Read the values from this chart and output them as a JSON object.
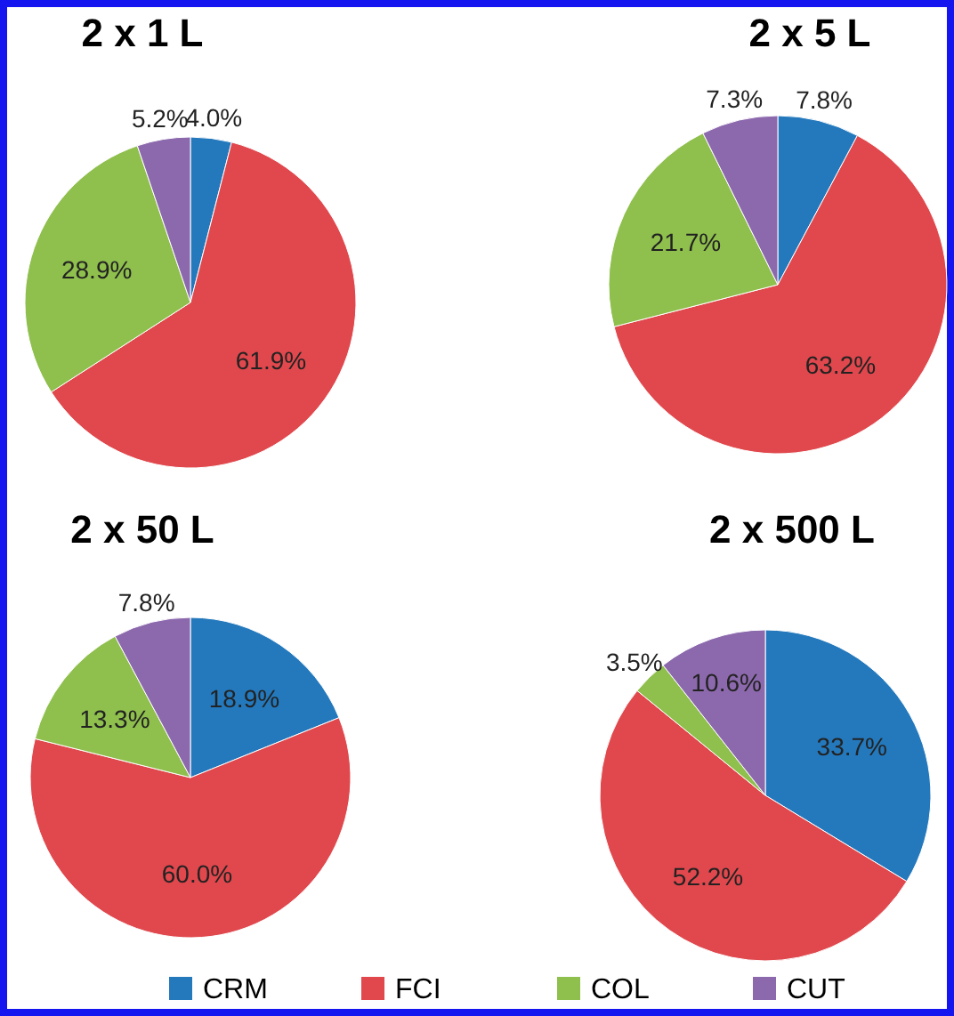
{
  "chart_data": [
    {
      "type": "pie",
      "title": "2 x 1 L",
      "categories": [
        "CRM",
        "FCI",
        "COL",
        "CUT"
      ],
      "values": [
        4.0,
        61.9,
        28.9,
        5.2
      ],
      "value_labels": [
        "4.0%",
        "61.9%",
        "28.9%",
        "5.2%"
      ],
      "colors": [
        "#2479bd",
        "#e0484d",
        "#8fbf4d",
        "#8c69ad"
      ],
      "legend": "bottom"
    },
    {
      "type": "pie",
      "title": "2 x 5 L",
      "values": [
        7.8,
        63.2,
        21.7,
        7.3
      ],
      "value_labels": [
        "7.8%",
        "63.2%",
        "21.7%",
        "7.3%"
      ],
      "colors": [
        "#2479bd",
        "#e0484d",
        "#8fbf4d",
        "#8c69ad"
      ]
    },
    {
      "type": "pie",
      "title": "2 x 50 L",
      "values": [
        18.9,
        60.0,
        13.3,
        7.8
      ],
      "value_labels": [
        "18.9%",
        "60.0%",
        "13.3%",
        "7.8%"
      ],
      "colors": [
        "#2479bd",
        "#e0484d",
        "#8fbf4d",
        "#8c69ad"
      ]
    },
    {
      "type": "pie",
      "title": "2 x 500 L",
      "values": [
        33.7,
        52.2,
        3.5,
        10.6
      ],
      "value_labels": [
        "33.7%",
        "52.2%",
        "3.5%",
        "10.6%"
      ],
      "colors": [
        "#2479bd",
        "#e0484d",
        "#8fbf4d",
        "#8c69ad"
      ]
    }
  ]
}
